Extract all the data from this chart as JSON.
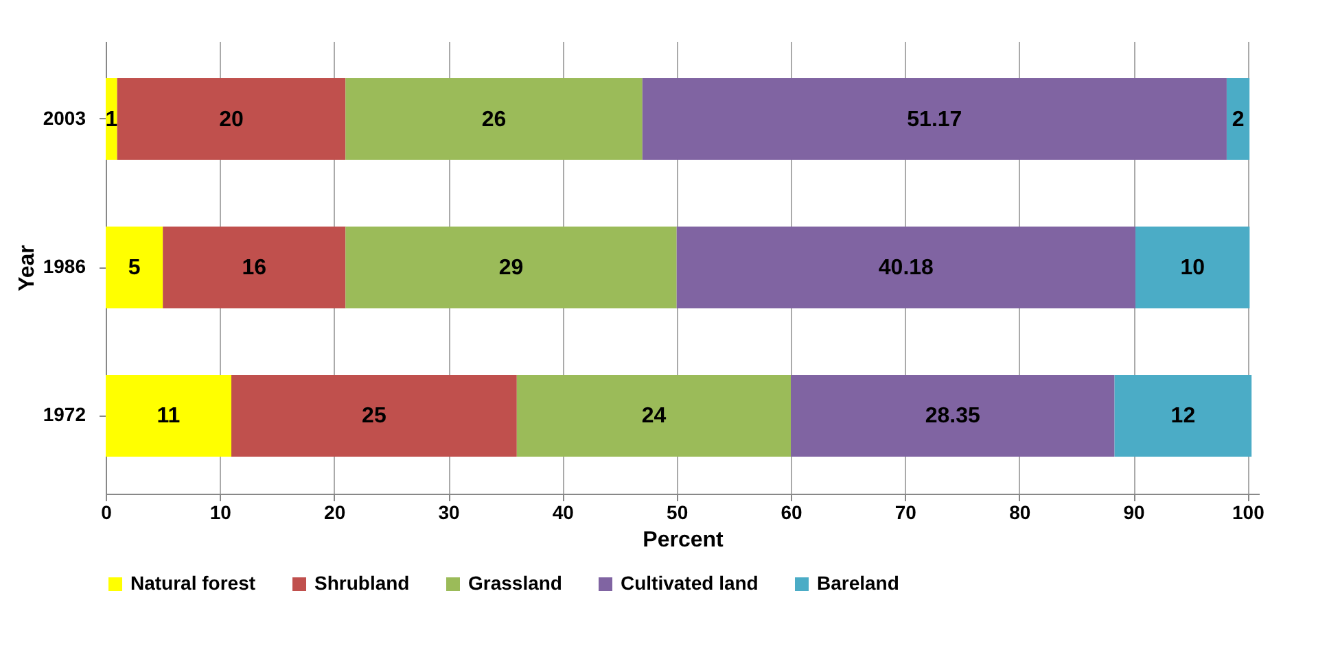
{
  "chart_data": {
    "type": "bar",
    "orientation": "horizontal",
    "stacked": true,
    "xlabel": "Percent",
    "ylabel": "Year",
    "categories": [
      "2003",
      "1986",
      "1972"
    ],
    "series": [
      {
        "name": "Natural forest",
        "color": "#ffff00",
        "values": [
          1,
          5,
          11
        ]
      },
      {
        "name": "Shrubland",
        "color": "#c0504d",
        "values": [
          20,
          16,
          25
        ]
      },
      {
        "name": "Grassland",
        "color": "#9bbb59",
        "values": [
          26,
          29,
          24
        ]
      },
      {
        "name": "Cultivated land",
        "color": "#8064a2",
        "values": [
          51.17,
          40.18,
          28.35
        ]
      },
      {
        "name": "Bareland",
        "color": "#4bacc6",
        "values": [
          2,
          10,
          12
        ]
      }
    ],
    "xlim": [
      0,
      101
    ],
    "xticks": [
      0,
      10,
      20,
      30,
      40,
      50,
      60,
      70,
      80,
      90,
      100
    ],
    "grid": "x",
    "legend": "bottom",
    "data_labels": true
  }
}
